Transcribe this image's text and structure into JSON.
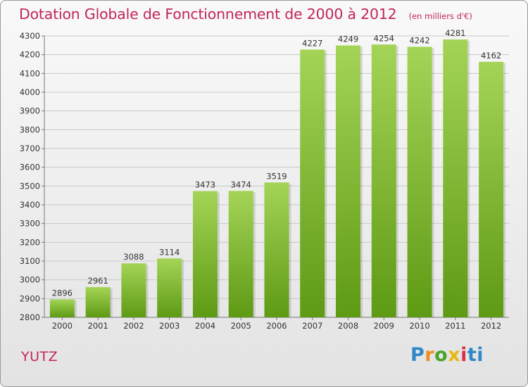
{
  "header": {
    "title": "Dotation Globale de Fonctionnement de 2000 à 2012",
    "subtitle": "(en milliers d'€)"
  },
  "footer": {
    "commune": "YUTZ",
    "logo_text": "Proxiti"
  },
  "colors": {
    "accent": "#c2255c",
    "bar_light": "#a4d457",
    "bar_dark": "#5e9a14",
    "grid": "#c9c9c9"
  },
  "chart_data": {
    "type": "bar",
    "title": "Dotation Globale de Fonctionnement de 2000 à 2012",
    "subtitle": "(en milliers d'€)",
    "categories": [
      "2000",
      "2001",
      "2002",
      "2003",
      "2004",
      "2005",
      "2006",
      "2007",
      "2008",
      "2009",
      "2010",
      "2011",
      "2012"
    ],
    "values": [
      2896,
      2961,
      3088,
      3114,
      3473,
      3474,
      3519,
      4227,
      4249,
      4254,
      4242,
      4281,
      4162
    ],
    "ylim": [
      2800,
      4300
    ],
    "yticks": [
      2800,
      2900,
      3000,
      3100,
      3200,
      3300,
      3400,
      3500,
      3600,
      3700,
      3800,
      3900,
      4000,
      4100,
      4200,
      4300
    ],
    "grid": true,
    "data_labels": true,
    "legend": "none"
  }
}
